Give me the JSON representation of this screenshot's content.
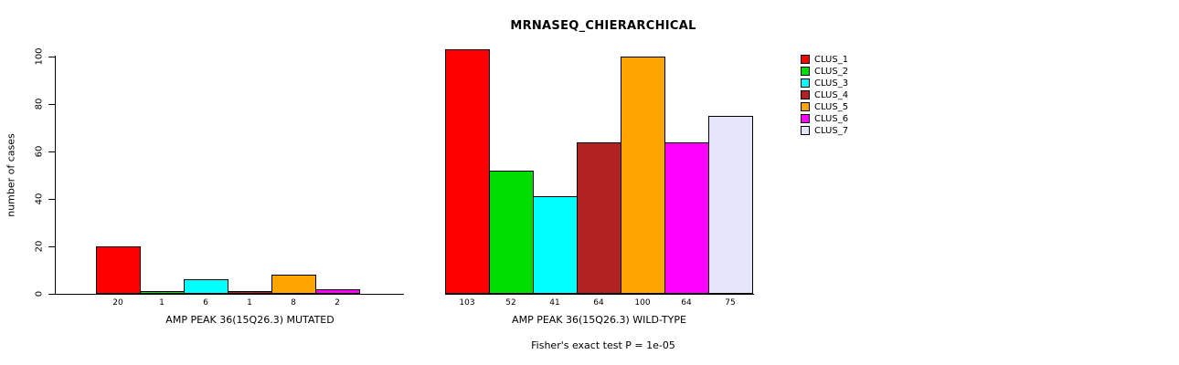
{
  "chart_data": {
    "type": "bar",
    "title": "MRNASEQ_CHIERARCHICAL",
    "ylabel": "number of cases",
    "xlabel": "",
    "categories": [
      "AMP PEAK 36(15Q26.3) MUTATED",
      "AMP PEAK 36(15Q26.3) WILD-TYPE"
    ],
    "series": [
      {
        "name": "CLUS_1",
        "color": "#FF0000",
        "values": [
          20,
          103
        ]
      },
      {
        "name": "CLUS_2",
        "color": "#00DD00",
        "values": [
          1,
          52
        ]
      },
      {
        "name": "CLUS_3",
        "color": "#00FFFF",
        "values": [
          6,
          41
        ]
      },
      {
        "name": "CLUS_4",
        "color": "#B22222",
        "values": [
          1,
          64
        ]
      },
      {
        "name": "CLUS_5",
        "color": "#FFA500",
        "values": [
          8,
          100
        ]
      },
      {
        "name": "CLUS_6",
        "color": "#FF00FF",
        "values": [
          2,
          64
        ]
      },
      {
        "name": "CLUS_7",
        "color": "#E6E6FA",
        "values": [
          null,
          75
        ]
      }
    ],
    "bar_value_labels": true,
    "ylim": [
      0,
      103
    ],
    "yticks": [
      0,
      20,
      40,
      60,
      80,
      100
    ],
    "grid": false,
    "legend_position": "right",
    "footnote": "Fisher's exact test P = 1e-05"
  }
}
